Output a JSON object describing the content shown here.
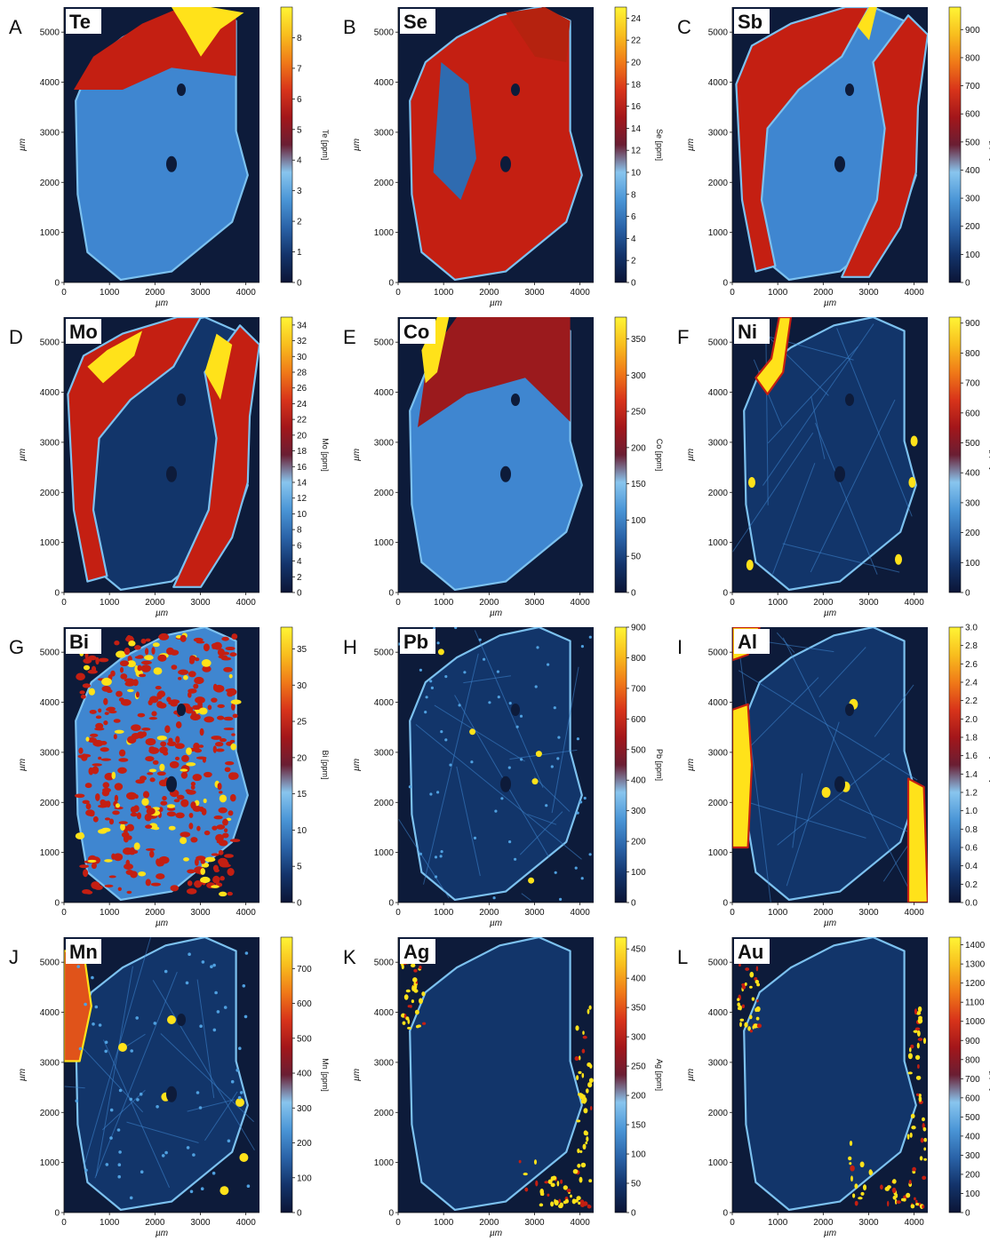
{
  "chart_data": [
    {
      "type": "heatmap",
      "letter": "A",
      "element": "Te",
      "colorbar": {
        "label": "Te [ppm]",
        "ticks": [
          "0",
          "1",
          "2",
          "3",
          "4",
          "5",
          "6",
          "7",
          "8"
        ],
        "min": 0,
        "max": 9
      },
      "x_axis": {
        "label": "µm",
        "ticks": [
          "0",
          "1000",
          "2000",
          "3000",
          "4000"
        ]
      },
      "y_axis": {
        "label": "µm",
        "ticks": [
          "0",
          "1000",
          "2000",
          "3000",
          "4000",
          "5000"
        ]
      },
      "xlim": [
        0,
        4300
      ],
      "ylim": [
        0,
        5500
      ],
      "pattern": "te"
    },
    {
      "type": "heatmap",
      "letter": "B",
      "element": "Se",
      "colorbar": {
        "label": "Se [ppm]",
        "ticks": [
          "0",
          "2",
          "4",
          "6",
          "8",
          "10",
          "12",
          "14",
          "16",
          "18",
          "20",
          "22",
          "24"
        ],
        "min": 0,
        "max": 25
      },
      "x_axis": {
        "label": "µm",
        "ticks": [
          "0",
          "1000",
          "2000",
          "3000",
          "4000"
        ]
      },
      "y_axis": {
        "label": "µm",
        "ticks": [
          "0",
          "1000",
          "2000",
          "3000",
          "4000",
          "5000"
        ]
      },
      "xlim": [
        0,
        4300
      ],
      "ylim": [
        0,
        5500
      ],
      "pattern": "se"
    },
    {
      "type": "heatmap",
      "letter": "C",
      "element": "Sb",
      "colorbar": {
        "label": "Sb [ppm]",
        "ticks": [
          "0",
          "100",
          "200",
          "300",
          "400",
          "500",
          "600",
          "700",
          "800",
          "900"
        ],
        "min": 0,
        "max": 980
      },
      "x_axis": {
        "label": "µm",
        "ticks": [
          "0",
          "1000",
          "2000",
          "3000",
          "4000"
        ]
      },
      "y_axis": {
        "label": "µm",
        "ticks": [
          "0",
          "1000",
          "2000",
          "3000",
          "4000",
          "5000"
        ]
      },
      "xlim": [
        0,
        4300
      ],
      "ylim": [
        0,
        5500
      ],
      "pattern": "sb"
    },
    {
      "type": "heatmap",
      "letter": "D",
      "element": "Mo",
      "colorbar": {
        "label": "Mo [ppm]",
        "ticks": [
          "0",
          "2",
          "4",
          "6",
          "8",
          "10",
          "12",
          "14",
          "16",
          "18",
          "20",
          "22",
          "24",
          "26",
          "28",
          "30",
          "32",
          "34"
        ],
        "min": 0,
        "max": 35
      },
      "x_axis": {
        "label": "µm",
        "ticks": [
          "0",
          "1000",
          "2000",
          "3000",
          "4000"
        ]
      },
      "y_axis": {
        "label": "µm",
        "ticks": [
          "0",
          "1000",
          "2000",
          "3000",
          "4000",
          "5000"
        ]
      },
      "xlim": [
        0,
        4300
      ],
      "ylim": [
        0,
        5500
      ],
      "pattern": "mo"
    },
    {
      "type": "heatmap",
      "letter": "E",
      "element": "Co",
      "colorbar": {
        "label": "Co [ppm]",
        "ticks": [
          "0",
          "50",
          "100",
          "150",
          "200",
          "250",
          "300",
          "350"
        ],
        "min": 0,
        "max": 380
      },
      "x_axis": {
        "label": "µm",
        "ticks": [
          "0",
          "1000",
          "2000",
          "3000",
          "4000"
        ]
      },
      "y_axis": {
        "label": "µm",
        "ticks": [
          "0",
          "1000",
          "2000",
          "3000",
          "4000",
          "5000"
        ]
      },
      "xlim": [
        0,
        4300
      ],
      "ylim": [
        0,
        5500
      ],
      "pattern": "co"
    },
    {
      "type": "heatmap",
      "letter": "F",
      "element": "Ni",
      "colorbar": {
        "label": "Ni [ppm]",
        "ticks": [
          "0",
          "100",
          "200",
          "300",
          "400",
          "500",
          "600",
          "700",
          "800",
          "900"
        ],
        "min": 0,
        "max": 920
      },
      "x_axis": {
        "label": "µm",
        "ticks": [
          "0",
          "1000",
          "2000",
          "3000",
          "4000"
        ]
      },
      "y_axis": {
        "label": "µm",
        "ticks": [
          "0",
          "1000",
          "2000",
          "3000",
          "4000",
          "5000"
        ]
      },
      "xlim": [
        0,
        4300
      ],
      "ylim": [
        0,
        5500
      ],
      "pattern": "ni"
    },
    {
      "type": "heatmap",
      "letter": "G",
      "element": "Bi",
      "colorbar": {
        "label": "Bi [ppm]",
        "ticks": [
          "0",
          "5",
          "10",
          "15",
          "20",
          "25",
          "30",
          "35"
        ],
        "min": 0,
        "max": 38
      },
      "x_axis": {
        "label": "µm",
        "ticks": [
          "0",
          "1000",
          "2000",
          "3000",
          "4000"
        ]
      },
      "y_axis": {
        "label": "µm",
        "ticks": [
          "0",
          "1000",
          "2000",
          "3000",
          "4000",
          "5000"
        ]
      },
      "xlim": [
        0,
        4300
      ],
      "ylim": [
        0,
        5500
      ],
      "pattern": "bi"
    },
    {
      "type": "heatmap",
      "letter": "H",
      "element": "Pb",
      "colorbar": {
        "label": "Pb [ppm]",
        "ticks": [
          "0",
          "100",
          "200",
          "300",
          "400",
          "500",
          "600",
          "700",
          "800",
          "900"
        ],
        "min": 0,
        "max": 900
      },
      "x_axis": {
        "label": "µm",
        "ticks": [
          "0",
          "1000",
          "2000",
          "3000",
          "4000"
        ]
      },
      "y_axis": {
        "label": "µm",
        "ticks": [
          "0",
          "1000",
          "2000",
          "3000",
          "4000",
          "5000"
        ]
      },
      "xlim": [
        0,
        4300
      ],
      "ylim": [
        0,
        5500
      ],
      "pattern": "pb"
    },
    {
      "type": "heatmap",
      "letter": "I",
      "element": "Al",
      "colorbar": {
        "label": "Al [Wt. %]",
        "ticks": [
          "0.0",
          "0.2",
          "0.4",
          "0.6",
          "0.8",
          "1.0",
          "1.2",
          "1.4",
          "1.6",
          "1.8",
          "2.0",
          "2.2",
          "2.4",
          "2.6",
          "2.8",
          "3.0"
        ],
        "min": 0,
        "max": 3.0
      },
      "x_axis": {
        "label": "µm",
        "ticks": [
          "0",
          "1000",
          "2000",
          "3000",
          "4000"
        ]
      },
      "y_axis": {
        "label": "µm",
        "ticks": [
          "0",
          "1000",
          "2000",
          "3000",
          "4000",
          "5000"
        ]
      },
      "xlim": [
        0,
        4300
      ],
      "ylim": [
        0,
        5500
      ],
      "pattern": "al"
    },
    {
      "type": "heatmap",
      "letter": "J",
      "element": "Mn",
      "colorbar": {
        "label": "Mn [ppm]",
        "ticks": [
          "0",
          "100",
          "200",
          "300",
          "400",
          "500",
          "600",
          "700"
        ],
        "min": 0,
        "max": 790
      },
      "x_axis": {
        "label": "µm",
        "ticks": [
          "0",
          "1000",
          "2000",
          "3000",
          "4000"
        ]
      },
      "y_axis": {
        "label": "µm",
        "ticks": [
          "0",
          "1000",
          "2000",
          "3000",
          "4000",
          "5000"
        ]
      },
      "xlim": [
        0,
        4300
      ],
      "ylim": [
        0,
        5500
      ],
      "pattern": "mn"
    },
    {
      "type": "heatmap",
      "letter": "K",
      "element": "Ag",
      "colorbar": {
        "label": "Ag [ppm]",
        "ticks": [
          "0",
          "50",
          "100",
          "150",
          "200",
          "250",
          "300",
          "350",
          "400",
          "450"
        ],
        "min": 0,
        "max": 470
      },
      "x_axis": {
        "label": "µm",
        "ticks": [
          "0",
          "1000",
          "2000",
          "3000",
          "4000"
        ]
      },
      "y_axis": {
        "label": "µm",
        "ticks": [
          "0",
          "1000",
          "2000",
          "3000",
          "4000",
          "5000"
        ]
      },
      "xlim": [
        0,
        4300
      ],
      "ylim": [
        0,
        5500
      ],
      "pattern": "ag"
    },
    {
      "type": "heatmap",
      "letter": "L",
      "element": "Au",
      "colorbar": {
        "label": "Au [ppm]",
        "ticks": [
          "0",
          "100",
          "200",
          "300",
          "400",
          "500",
          "600",
          "700",
          "800",
          "900",
          "1000",
          "1100",
          "1200",
          "1300",
          "1400"
        ],
        "min": 0,
        "max": 1440
      },
      "x_axis": {
        "label": "µm",
        "ticks": [
          "0",
          "1000",
          "2000",
          "3000",
          "4000"
        ]
      },
      "y_axis": {
        "label": "µm",
        "ticks": [
          "0",
          "1000",
          "2000",
          "3000",
          "4000",
          "5000"
        ]
      },
      "xlim": [
        0,
        4300
      ],
      "ylim": [
        0,
        5500
      ],
      "pattern": "au"
    }
  ],
  "colors": {
    "background": "#0d1b3a",
    "matrix": "#12356a",
    "grain": "#3f86d0",
    "rim": "#7cc1ef",
    "high": "#c41f12",
    "peak": "#ffe21a",
    "colormap": [
      "#0b1536",
      "#13336a",
      "#2a63a8",
      "#4a95d6",
      "#88c5ee",
      "#6a1e33",
      "#a3161a",
      "#d8341a",
      "#f07a18",
      "#f8be1e",
      "#fff535"
    ]
  }
}
